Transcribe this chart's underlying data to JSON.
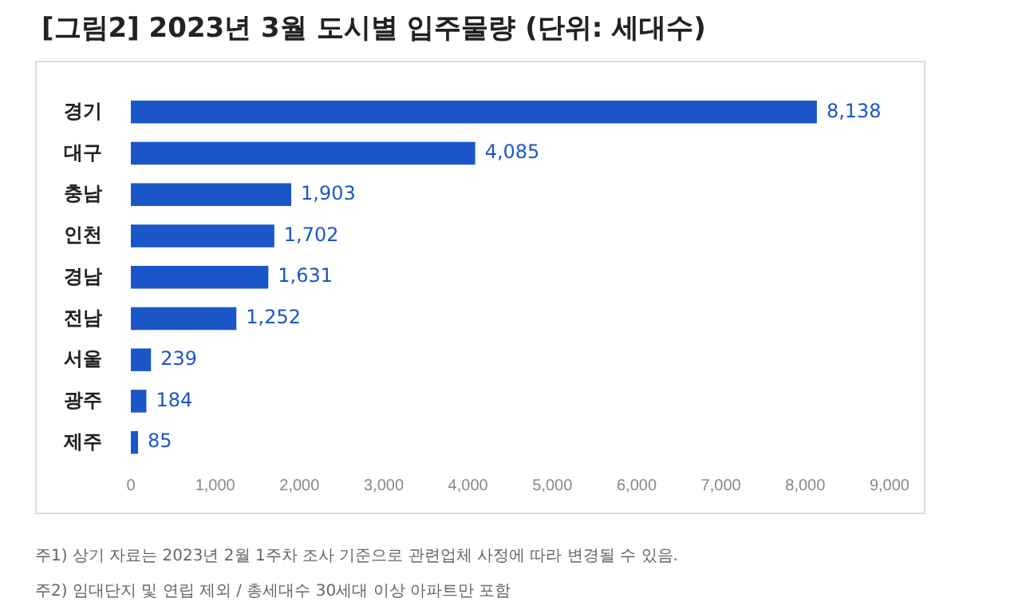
{
  "chart_data": {
    "type": "bar",
    "orientation": "horizontal",
    "title": "[그림2] 2023년 3월 도시별 입주물량 (단위: 세대수)",
    "categories": [
      "경기",
      "대구",
      "충남",
      "인천",
      "경남",
      "전남",
      "서울",
      "광주",
      "제주"
    ],
    "values": [
      8138,
      4085,
      1903,
      1702,
      1631,
      1252,
      239,
      184,
      85
    ],
    "value_labels": [
      "8,138",
      "4,085",
      "1,903",
      "1,702",
      "1,631",
      "1,252",
      "239",
      "184",
      "85"
    ],
    "color": "#1a56c8",
    "xlim": [
      0,
      9000
    ],
    "xticks": [
      0,
      {
        "value": 1000,
        "label": "1,000"
      },
      {
        "value": 2000,
        "label": "2,000"
      },
      {
        "value": 3000,
        "label": "3,000"
      },
      {
        "value": 4000,
        "label": "4,000"
      },
      {
        "value": 5000,
        "label": "5,000"
      },
      {
        "value": 6000,
        "label": "6,000"
      },
      {
        "value": 7000,
        "label": "7,000"
      },
      {
        "value": 8000,
        "label": "8,000"
      },
      {
        "value": 9000,
        "label": "9,000"
      }
    ],
    "grid": false,
    "annotations": [
      "주1) 상기 자료는 2023년 2월 1주차 조사 기준으로 관련업체 사정에 따라 변경될 수 있음.",
      "주2) 임대단지 및 연립 제외 / 총세대수 30세대 이상 아파트만 포함"
    ]
  }
}
